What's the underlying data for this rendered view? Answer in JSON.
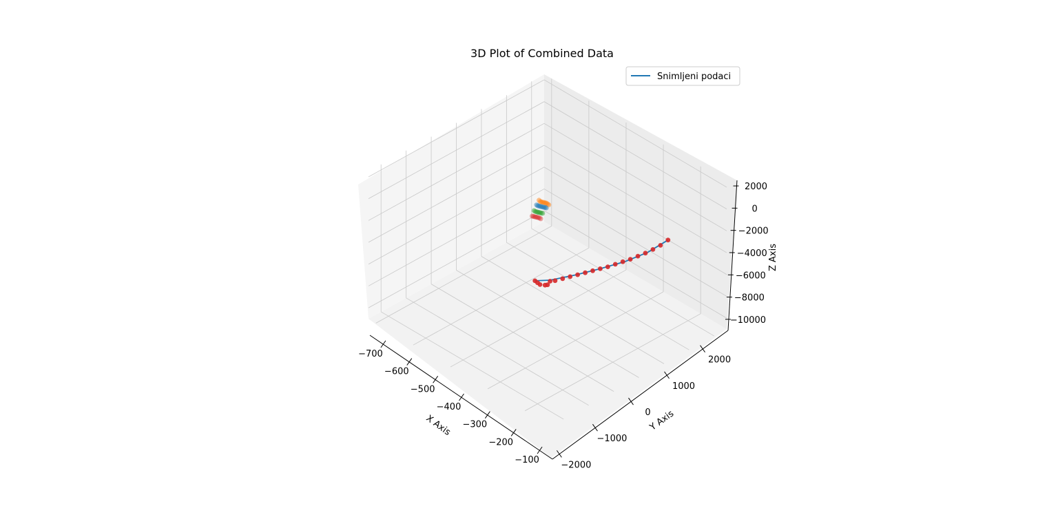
{
  "chart_data": {
    "type": "scatter",
    "projection": "3d",
    "title": "3D Plot of Combined Data",
    "xlabel": "X Axis",
    "ylabel": "Y Axis",
    "zlabel": "Z Axis",
    "xlim": [
      -750,
      -50
    ],
    "ylim": [
      -2200,
      2700
    ],
    "zlim": [
      -11000,
      2500
    ],
    "x_ticks": [
      -700,
      -600,
      -500,
      -400,
      -300,
      -200,
      -100
    ],
    "y_ticks": [
      -2000,
      -1000,
      0,
      1000,
      2000
    ],
    "z_ticks": [
      2000,
      0,
      -2000,
      -4000,
      -6000,
      -8000,
      -10000
    ],
    "x_tick_labels": [
      "−700",
      "−600",
      "−500",
      "−400",
      "−300",
      "−200",
      "−100"
    ],
    "y_tick_labels": [
      "−2000",
      "−1000",
      "0",
      "1000",
      "2000"
    ],
    "z_tick_labels": [
      "2000",
      "0",
      "−2000",
      "−4000",
      "−6000",
      "−8000",
      "−10000"
    ],
    "grid": true,
    "legend_position": "upper-right",
    "legend_entries": [
      {
        "label": "Snimljeni podaci",
        "color": "#1f77b4",
        "marker": "line"
      }
    ],
    "series": [
      {
        "kind": "line",
        "color": "#1f77b4",
        "points": [
          [
            -620,
            2000,
            -2600
          ],
          [
            -540,
            2000,
            -2700
          ],
          [
            -450,
            2000,
            -2400
          ],
          [
            -350,
            2000,
            -1800
          ],
          [
            -250,
            2000,
            -1100
          ],
          [
            -150,
            2000,
            -300
          ],
          [
            -90,
            2000,
            400
          ]
        ]
      },
      {
        "kind": "scatter",
        "color": "#d62728",
        "alpha": 0.9,
        "points": [
          [
            -620,
            2000,
            -2600
          ],
          [
            -590,
            2000,
            -2700
          ],
          [
            -560,
            2000,
            -2700
          ],
          [
            -530,
            2000,
            -2650
          ],
          [
            -500,
            2000,
            -2550
          ],
          [
            -470,
            2000,
            -2450
          ],
          [
            -440,
            2000,
            -2300
          ],
          [
            -410,
            2000,
            -2150
          ],
          [
            -380,
            2000,
            -2000
          ],
          [
            -350,
            2000,
            -1800
          ],
          [
            -320,
            2000,
            -1600
          ],
          [
            -290,
            2000,
            -1400
          ],
          [
            -260,
            2000,
            -1200
          ],
          [
            -230,
            2000,
            -1000
          ],
          [
            -200,
            2000,
            -800
          ],
          [
            -170,
            2000,
            -600
          ],
          [
            -150,
            2000,
            -400
          ],
          [
            -140,
            2000,
            -600
          ],
          [
            -130,
            2000,
            -500
          ],
          [
            -110,
            2000,
            -200
          ],
          [
            -100,
            2000,
            100
          ],
          [
            -90,
            2000,
            400
          ]
        ]
      },
      {
        "kind": "scatter",
        "color": "#ff7f0e",
        "alpha": 0.45,
        "points": [
          [
            -700,
            -2000,
            -8000
          ],
          [
            -690,
            -1900,
            -7800
          ],
          [
            -680,
            -1800,
            -7500
          ],
          [
            -670,
            -1700,
            -7200
          ],
          [
            -660,
            -1600,
            -6900
          ],
          [
            -650,
            -1500,
            -6600
          ],
          [
            -640,
            -1400,
            -6300
          ],
          [
            -630,
            -1300,
            -6050
          ],
          [
            -620,
            -1200,
            -5800
          ]
        ]
      },
      {
        "kind": "scatter",
        "color": "#1f77b4",
        "alpha": 0.45,
        "points": [
          [
            -690,
            -2000,
            -8300
          ],
          [
            -680,
            -1900,
            -8050
          ],
          [
            -670,
            -1800,
            -7750
          ],
          [
            -660,
            -1700,
            -7450
          ],
          [
            -650,
            -1600,
            -7150
          ],
          [
            -640,
            -1500,
            -6850
          ],
          [
            -630,
            -1400,
            -6550
          ],
          [
            -620,
            -1300,
            -6250
          ],
          [
            -610,
            -1200,
            -5950
          ]
        ]
      },
      {
        "kind": "scatter",
        "color": "#2ca02c",
        "alpha": 0.45,
        "points": [
          [
            -680,
            -2000,
            -8700
          ],
          [
            -670,
            -1900,
            -8450
          ],
          [
            -660,
            -1800,
            -8150
          ],
          [
            -650,
            -1700,
            -7850
          ],
          [
            -640,
            -1600,
            -7550
          ],
          [
            -630,
            -1500,
            -7250
          ],
          [
            -620,
            -1400,
            -6950
          ],
          [
            -610,
            -1300,
            -6650
          ]
        ]
      },
      {
        "kind": "scatter",
        "color": "#d62728",
        "alpha": 0.4,
        "points": [
          [
            -680,
            -2050,
            -9300
          ],
          [
            -670,
            -1950,
            -9000
          ],
          [
            -660,
            -1850,
            -8700
          ],
          [
            -650,
            -1750,
            -8400
          ],
          [
            -640,
            -1650,
            -8100
          ],
          [
            -630,
            -1550,
            -7800
          ],
          [
            -620,
            -1450,
            -7500
          ],
          [
            -610,
            -1350,
            -7250
          ]
        ]
      }
    ]
  }
}
